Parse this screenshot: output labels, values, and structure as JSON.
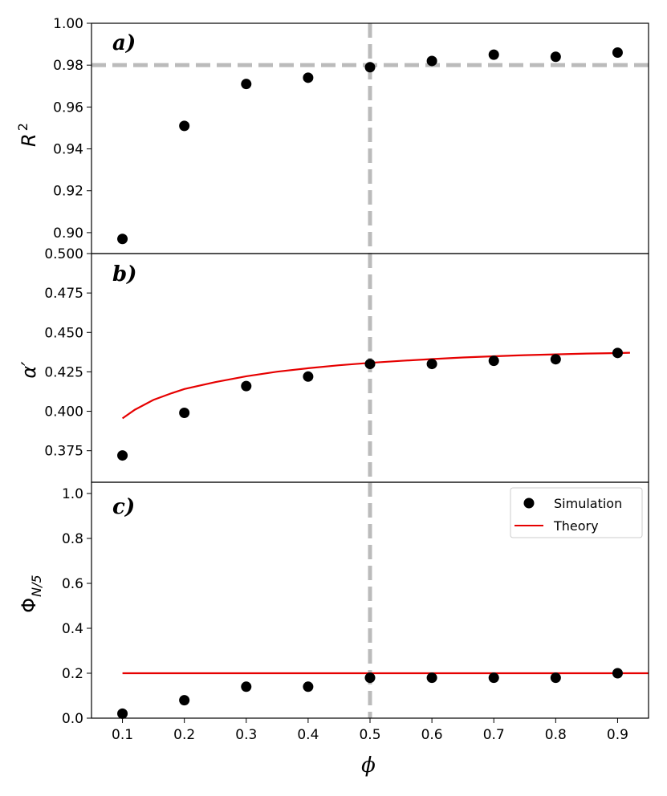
{
  "chart_data": [
    {
      "type": "scatter",
      "panel_label": "a)",
      "ylabel_main": "R",
      "ylabel_sup": "2",
      "xlim": [
        0.05,
        0.95
      ],
      "ylim": [
        0.89,
        1.0
      ],
      "yticks": [
        0.9,
        0.92,
        0.94,
        0.96,
        0.98,
        1.0
      ],
      "ytick_labels": [
        "0.90",
        "0.92",
        "0.94",
        "0.96",
        "0.98",
        "1.00"
      ],
      "hline": 0.98,
      "vline": 0.5,
      "series": [
        {
          "name": "Simulation",
          "x": [
            0.1,
            0.2,
            0.3,
            0.4,
            0.5,
            0.6,
            0.7,
            0.8,
            0.9
          ],
          "y": [
            0.897,
            0.951,
            0.971,
            0.974,
            0.979,
            0.982,
            0.985,
            0.984,
            0.986
          ]
        }
      ]
    },
    {
      "type": "scatter",
      "panel_label": "b)",
      "ylabel_main": "α′",
      "xlim": [
        0.05,
        0.95
      ],
      "ylim": [
        0.355,
        0.5
      ],
      "yticks": [
        0.375,
        0.4,
        0.425,
        0.45,
        0.475,
        0.5
      ],
      "ytick_labels": [
        "0.375",
        "0.400",
        "0.425",
        "0.450",
        "0.475",
        "0.500"
      ],
      "vline": 0.5,
      "series": [
        {
          "name": "Simulation",
          "x": [
            0.1,
            0.2,
            0.3,
            0.4,
            0.5,
            0.6,
            0.7,
            0.8,
            0.9
          ],
          "y": [
            0.372,
            0.399,
            0.416,
            0.422,
            0.43,
            0.43,
            0.432,
            0.433,
            0.437
          ]
        },
        {
          "name": "Theory",
          "type": "line",
          "x": [
            0.1,
            0.12,
            0.15,
            0.18,
            0.2,
            0.25,
            0.3,
            0.35,
            0.4,
            0.45,
            0.5,
            0.55,
            0.6,
            0.65,
            0.7,
            0.75,
            0.8,
            0.85,
            0.9,
            0.92
          ],
          "y": [
            0.3955,
            0.401,
            0.4072,
            0.4115,
            0.4141,
            0.4185,
            0.4222,
            0.4251,
            0.4273,
            0.4292,
            0.4307,
            0.432,
            0.4331,
            0.4341,
            0.4349,
            0.4356,
            0.4361,
            0.4366,
            0.4369,
            0.4371
          ]
        }
      ]
    },
    {
      "type": "scatter",
      "panel_label": "c)",
      "ylabel_main": "Φ",
      "ylabel_sub": "N/5",
      "xlabel": "ϕ",
      "xlim": [
        0.05,
        0.95
      ],
      "ylim": [
        0.0,
        1.05
      ],
      "yticks": [
        0.0,
        0.2,
        0.4,
        0.6,
        0.8,
        1.0
      ],
      "ytick_labels": [
        "0.0",
        "0.2",
        "0.4",
        "0.6",
        "0.8",
        "1.0"
      ],
      "xticks": [
        0.1,
        0.2,
        0.3,
        0.4,
        0.5,
        0.6,
        0.7,
        0.8,
        0.9
      ],
      "xtick_labels": [
        "0.1",
        "0.2",
        "0.3",
        "0.4",
        "0.5",
        "0.6",
        "0.7",
        "0.8",
        "0.9"
      ],
      "vline": 0.5,
      "legend": {
        "position": "top-right",
        "entries": [
          "Simulation",
          "Theory"
        ]
      },
      "series": [
        {
          "name": "Simulation",
          "x": [
            0.1,
            0.2,
            0.3,
            0.4,
            0.5,
            0.6,
            0.7,
            0.8,
            0.9
          ],
          "y": [
            0.02,
            0.08,
            0.14,
            0.14,
            0.18,
            0.18,
            0.18,
            0.18,
            0.2
          ]
        },
        {
          "name": "Theory",
          "type": "line",
          "x": [
            0.1,
            0.95
          ],
          "y": [
            0.2,
            0.2
          ]
        }
      ]
    }
  ],
  "colors": {
    "points": "#000000",
    "theory": "#e60000",
    "reference": "#bbbbbb",
    "frame": "#000000"
  }
}
